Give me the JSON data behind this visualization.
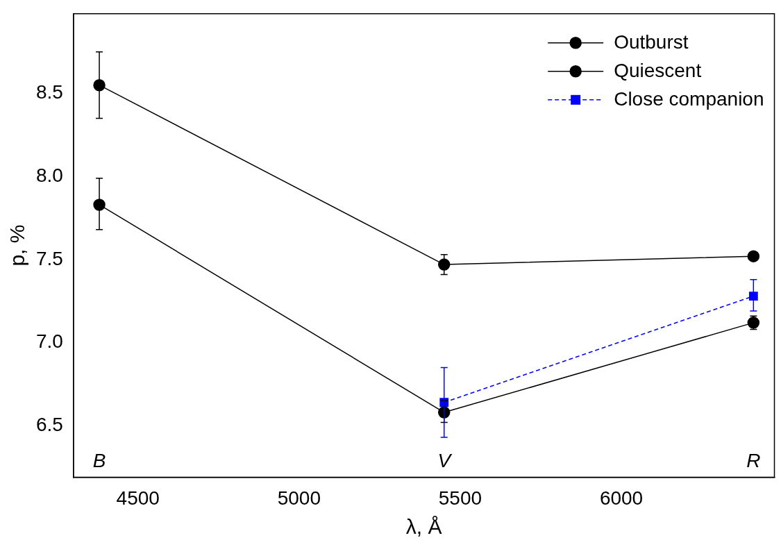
{
  "chart_data": {
    "type": "line",
    "xlabel": "λ, Å",
    "ylabel": "p, %",
    "xlim": [
      4300,
      6475
    ],
    "xticks": [
      4500,
      5000,
      5500,
      6000
    ],
    "ylim": [
      6.19,
      8.98
    ],
    "yticks": [
      6.5,
      {
        "value": 7,
        "label": "7.0"
      },
      7.5,
      {
        "value": 8,
        "label": "8.0"
      },
      8.5
    ],
    "grid": false,
    "legend": "top right",
    "series": [
      {
        "name": "Outburst",
        "color": "#000000",
        "marker": "circle",
        "line_style": "solid",
        "x": [
          4380,
          5450,
          6410
        ],
        "values": [
          8.55,
          7.47,
          7.52
        ],
        "errors": [
          [
            8.35,
            8.75
          ],
          [
            7.41,
            7.53
          ],
          null
        ]
      },
      {
        "name": "Quiescent",
        "color": "#000000",
        "marker": "circle",
        "line_style": "solid",
        "x": [
          4380,
          5450,
          6410
        ],
        "values": [
          7.83,
          6.58,
          7.12
        ],
        "errors": [
          [
            7.68,
            7.99
          ],
          [
            6.52,
            6.65
          ],
          [
            7.08,
            7.16
          ]
        ]
      },
      {
        "name": "Close companion",
        "color": "#0000ff",
        "marker": "square",
        "line_style": "dashed",
        "x": [
          5450,
          6410
        ],
        "values": [
          6.64,
          7.28
        ],
        "errors": [
          [
            6.43,
            6.85
          ],
          [
            7.19,
            7.38
          ]
        ]
      }
    ],
    "annotations": [
      "B",
      "V",
      "R"
    ]
  }
}
